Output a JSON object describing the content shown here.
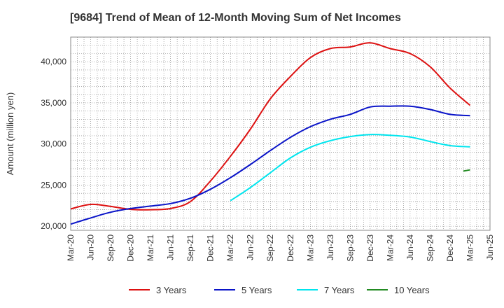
{
  "chart_data": {
    "type": "line",
    "title": "[9684]  Trend of Mean of 12-Month Moving Sum of Net Incomes",
    "xlabel": "",
    "ylabel": "Amount (million yen)",
    "ylim": [
      19500,
      43000
    ],
    "y_ticks": [
      20000,
      25000,
      30000,
      35000,
      40000
    ],
    "y_tick_labels": [
      "20,000",
      "25,000",
      "30,000",
      "35,000",
      "40,000"
    ],
    "x_tick_labels": [
      "Mar-20",
      "Jun-20",
      "Sep-20",
      "Dec-20",
      "Mar-21",
      "Jun-21",
      "Sep-21",
      "Dec-21",
      "Mar-22",
      "Jun-22",
      "Sep-22",
      "Dec-22",
      "Mar-23",
      "Jun-23",
      "Sep-23",
      "Dec-23",
      "Mar-24",
      "Jun-24",
      "Sep-24",
      "Dec-24",
      "Mar-25",
      "Jun-25"
    ],
    "grid": true,
    "legend_position": "bottom",
    "series": [
      {
        "name": "3 Years",
        "color": "#dd1111",
        "x": [
          "Mar-20",
          "Jun-20",
          "Sep-20",
          "Dec-20",
          "Mar-21",
          "Jun-21",
          "Sep-21",
          "Dec-21",
          "Mar-22",
          "Jun-22",
          "Sep-22",
          "Dec-22",
          "Mar-23",
          "Jun-23",
          "Sep-23",
          "Dec-23",
          "Mar-24",
          "Jun-24",
          "Sep-24",
          "Dec-24",
          "Mar-25"
        ],
        "values": [
          22100,
          22650,
          22400,
          22050,
          22000,
          22150,
          23000,
          25500,
          28500,
          31800,
          35500,
          38200,
          40500,
          41600,
          41800,
          42300,
          41600,
          41000,
          39400,
          36800,
          34700
        ]
      },
      {
        "name": "5 Years",
        "color": "#0a14c8",
        "x": [
          "Mar-20",
          "Jun-20",
          "Sep-20",
          "Dec-20",
          "Mar-21",
          "Jun-21",
          "Sep-21",
          "Dec-21",
          "Mar-22",
          "Jun-22",
          "Sep-22",
          "Dec-22",
          "Mar-23",
          "Jun-23",
          "Sep-23",
          "Dec-23",
          "Mar-24",
          "Jun-24",
          "Sep-24",
          "Dec-24",
          "Mar-25"
        ],
        "values": [
          20250,
          21000,
          21700,
          22150,
          22450,
          22750,
          23400,
          24500,
          25900,
          27500,
          29200,
          30800,
          32100,
          33000,
          33600,
          34500,
          34600,
          34600,
          34200,
          33600,
          33450
        ]
      },
      {
        "name": "7 Years",
        "color": "#00e5ee",
        "x": [
          "Mar-22",
          "Jun-22",
          "Sep-22",
          "Dec-22",
          "Mar-23",
          "Jun-23",
          "Sep-23",
          "Dec-23",
          "Mar-24",
          "Jun-24",
          "Sep-24",
          "Dec-24",
          "Mar-25"
        ],
        "values": [
          23100,
          24700,
          26500,
          28300,
          29600,
          30400,
          30900,
          31150,
          31050,
          30850,
          30300,
          29800,
          29650
        ]
      },
      {
        "name": "10 Years",
        "color": "#228b22",
        "x": [
          "Feb-25",
          "Mar-25"
        ],
        "values": [
          26700,
          26850
        ]
      }
    ]
  }
}
